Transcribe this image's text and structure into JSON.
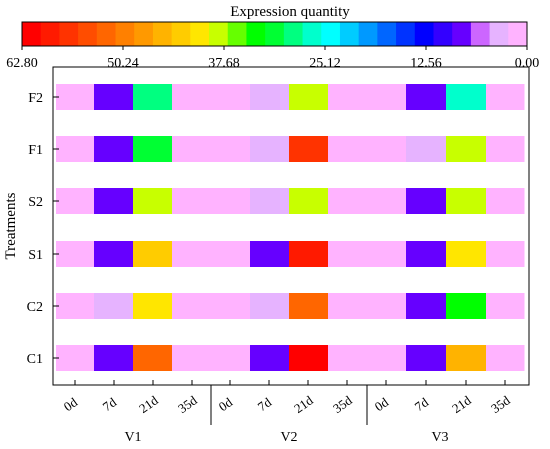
{
  "chart_data": {
    "type": "heatmap",
    "title": "",
    "ylabel": "Treatments",
    "colorbar": {
      "title": "Expression quantity",
      "tick_labels": [
        "62.80",
        "50.24",
        "37.68",
        "25.12",
        "12.56",
        "0.00"
      ],
      "range": [
        62.8,
        0.0
      ],
      "colors": [
        "#ff0000",
        "#ff1a00",
        "#ff3300",
        "#ff4d00",
        "#ff6600",
        "#ff8000",
        "#ff9900",
        "#ffb300",
        "#ffcc00",
        "#ffe600",
        "#c8ff00",
        "#66ff00",
        "#00ff00",
        "#00ff33",
        "#00ff80",
        "#00ffcc",
        "#00ffff",
        "#00ccff",
        "#0099ff",
        "#0066ff",
        "#0033ff",
        "#0000ff",
        "#3300ff",
        "#6600ff",
        "#cc66ff",
        "#e6b3ff",
        "#ffb3ff"
      ]
    },
    "rows": [
      "F2",
      "F1",
      "S2",
      "S1",
      "C2",
      "C1"
    ],
    "groups": [
      {
        "name": "V1",
        "days": [
          "0d",
          "7d",
          "21d",
          "35d"
        ]
      },
      {
        "name": "V2",
        "days": [
          "0d",
          "7d",
          "21d",
          "35d"
        ]
      },
      {
        "name": "V3",
        "days": [
          "0d",
          "7d",
          "21d",
          "35d"
        ]
      }
    ],
    "values": [
      [
        1.5,
        8.5,
        28.0,
        1.5,
        1.5,
        4.5,
        38.5,
        1.5,
        1.5,
        8.5,
        26.5,
        1.5
      ],
      [
        1.5,
        8.5,
        32.0,
        1.5,
        1.5,
        4.5,
        57.0,
        1.5,
        1.5,
        4.5,
        38.5,
        1.5
      ],
      [
        1.5,
        8.5,
        38.5,
        1.5,
        1.5,
        4.5,
        38.5,
        1.5,
        1.5,
        8.5,
        38.5,
        1.5
      ],
      [
        1.5,
        8.5,
        44.0,
        1.5,
        1.5,
        8.5,
        60.0,
        1.5,
        1.5,
        8.5,
        41.0,
        1.5
      ],
      [
        1.5,
        4.5,
        41.0,
        1.5,
        1.5,
        4.5,
        53.0,
        1.5,
        1.5,
        8.5,
        34.0,
        1.5
      ],
      [
        1.5,
        8.5,
        53.0,
        1.5,
        1.5,
        8.5,
        62.0,
        1.5,
        1.5,
        8.5,
        45.0,
        1.5
      ]
    ]
  }
}
